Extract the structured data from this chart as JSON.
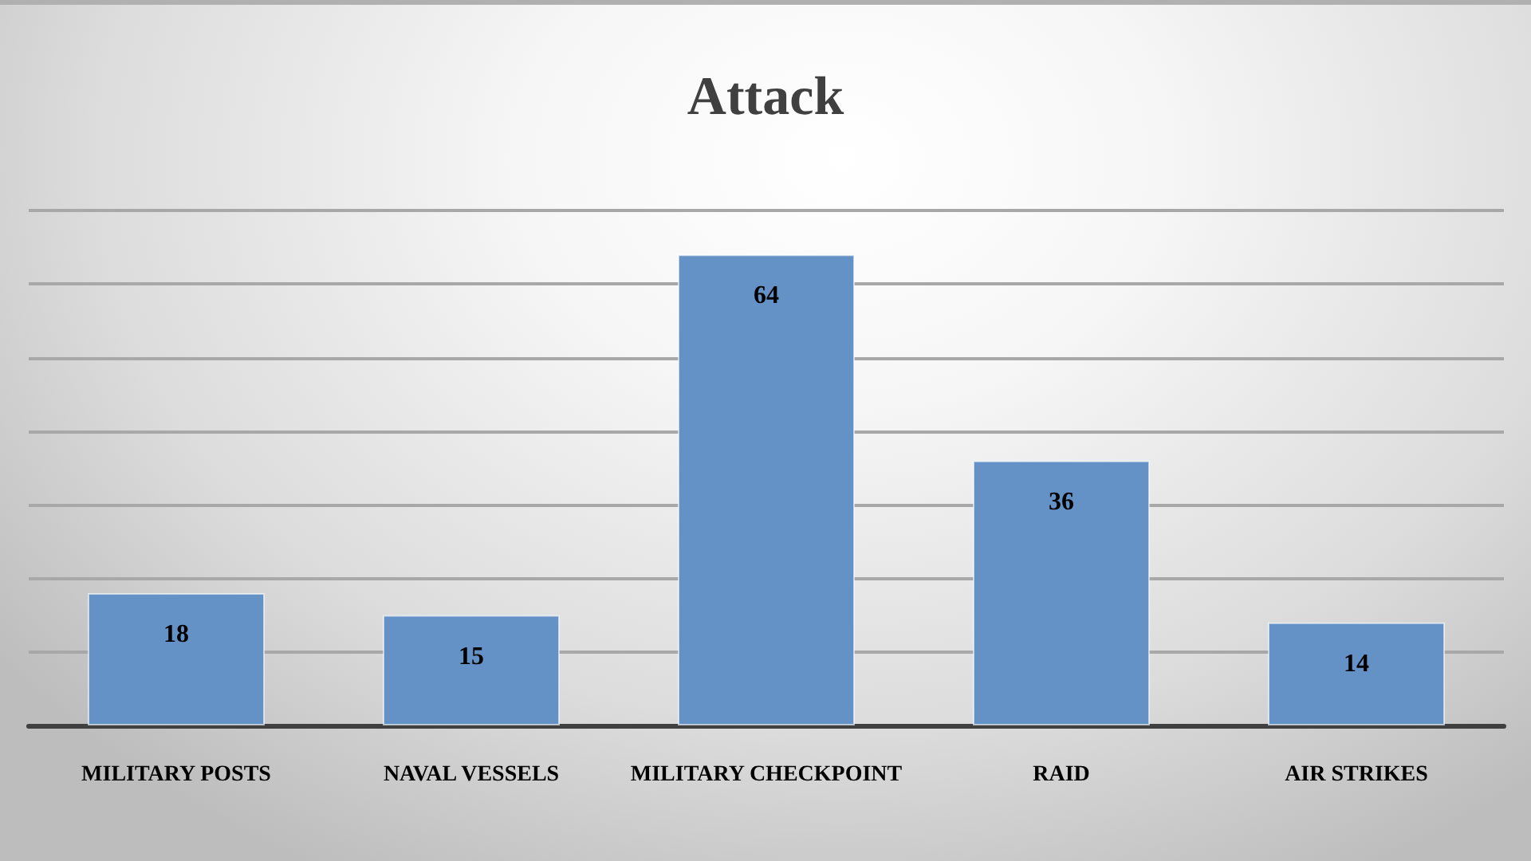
{
  "chart_data": {
    "type": "bar",
    "title": "Attack",
    "categories": [
      "MILITARY POSTS",
      "NAVAL VESSELS",
      "MILITARY CHECKPOINT",
      "RAID",
      "AIR STRIKES"
    ],
    "values": [
      18,
      15,
      64,
      36,
      14
    ],
    "color": "#6592c6",
    "ylim": [
      0,
      70
    ],
    "yticks": [
      {
        "value": 0,
        "label": null
      },
      {
        "value": 10,
        "label": null
      },
      {
        "value": 20,
        "label": null
      },
      {
        "value": 30,
        "label": null
      },
      {
        "value": 40,
        "label": null
      },
      {
        "value": 50,
        "label": null
      },
      {
        "value": 60,
        "label": null
      },
      {
        "value": 70,
        "label": null
      }
    ],
    "tick_labels": "x",
    "grid": "y",
    "data_labels": true
  }
}
